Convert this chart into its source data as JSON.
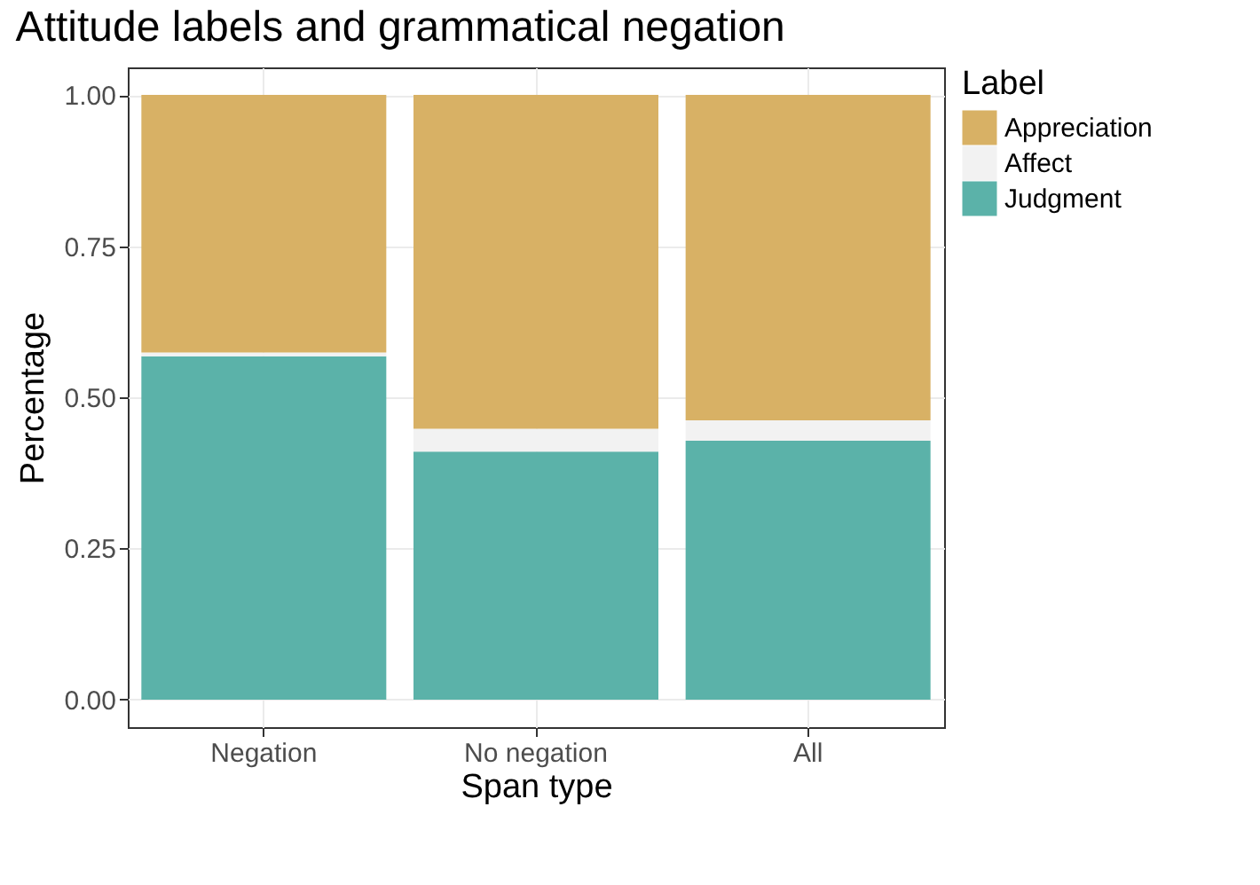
{
  "chart_data": {
    "type": "bar",
    "title": "Attitude labels and grammatical negation",
    "xlabel": "Span type",
    "ylabel": "Percentage",
    "legend_title": "Label",
    "categories": [
      "Negation",
      "No negation",
      "All"
    ],
    "stacked": true,
    "series": [
      {
        "name": "Judgment",
        "color": "#5bb2a9",
        "values": [
          0.568,
          0.41,
          0.428
        ]
      },
      {
        "name": "Affect",
        "color": "#f2f2f2",
        "values": [
          0.006,
          0.038,
          0.034
        ]
      },
      {
        "name": "Appreciation",
        "color": "#d8b165",
        "values": [
          0.426,
          0.552,
          0.538
        ]
      }
    ],
    "ylim": [
      -0.0455,
      1.0455
    ],
    "yticks": [
      {
        "value": 0,
        "label": "0.00"
      },
      {
        "value": 0.25,
        "label": "0.25"
      },
      {
        "value": 0.5,
        "label": "0.50"
      },
      {
        "value": 0.75,
        "label": "0.75"
      },
      {
        "value": 1,
        "label": "1.00"
      }
    ],
    "grid": true,
    "legend": "right"
  }
}
